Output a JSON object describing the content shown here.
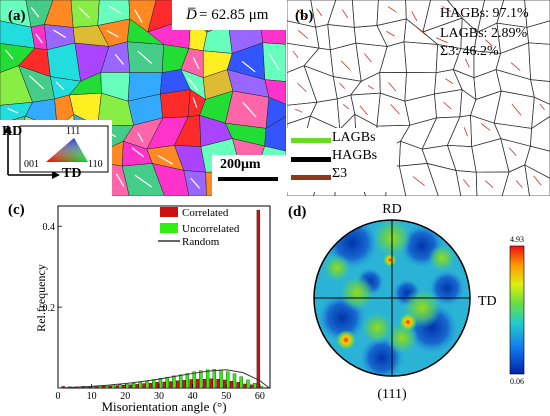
{
  "panel_a": {
    "label": "(a)",
    "grain_size_symbol": "D̅",
    "grain_size_text": "= 62.85 μm",
    "scale_bar": "200μm",
    "legend": {
      "rd": "RD",
      "td": "TD",
      "c111": "111",
      "c001": "001",
      "c110": "110"
    }
  },
  "panel_b": {
    "label": "(b)",
    "stats": [
      "HAGBs: 97.1%",
      "LAGBs: 2.89%",
      "Σ3: 46.2%"
    ],
    "legend": [
      {
        "label": "LAGBs",
        "color": "#66dd22"
      },
      {
        "label": "HAGBs",
        "color": "#000000"
      },
      {
        "label": "Σ3",
        "color": "#8b3a1a"
      }
    ]
  },
  "panel_c": {
    "label": "(c)"
  },
  "panel_d": {
    "label": "(d)",
    "rd": "RD",
    "td": "TD",
    "caption": "(111)",
    "colorbar_max": "4.93",
    "colorbar_min": "0.06"
  },
  "chart_data": {
    "type": "bar",
    "xlabel": "Misorientation angle (°)",
    "ylabel": "Rel.frequency",
    "xlim": [
      0,
      63
    ],
    "ylim": [
      0,
      0.45
    ],
    "x_ticks": [
      0,
      10,
      20,
      30,
      40,
      50,
      60
    ],
    "y_ticks": [
      0.2,
      0.4
    ],
    "legend_position": "top-right",
    "series": [
      {
        "name": "Correlated",
        "color": "#cc1111",
        "x": [
          2,
          4,
          6,
          8,
          10,
          12,
          14,
          16,
          18,
          20,
          22,
          24,
          26,
          28,
          30,
          32,
          34,
          36,
          38,
          40,
          42,
          44,
          46,
          48,
          50,
          52,
          54,
          56,
          58,
          60
        ],
        "values": [
          0.004,
          0.003,
          0.003,
          0.004,
          0.004,
          0.004,
          0.005,
          0.005,
          0.006,
          0.007,
          0.008,
          0.009,
          0.011,
          0.012,
          0.014,
          0.015,
          0.016,
          0.018,
          0.019,
          0.021,
          0.022,
          0.022,
          0.023,
          0.022,
          0.02,
          0.017,
          0.014,
          0.01,
          0.008,
          0.44
        ]
      },
      {
        "name": "Uncorrelated",
        "color": "#33ee11",
        "x": [
          2,
          4,
          6,
          8,
          10,
          12,
          14,
          16,
          18,
          20,
          22,
          24,
          26,
          28,
          30,
          32,
          34,
          36,
          38,
          40,
          42,
          44,
          46,
          48,
          50,
          52,
          54,
          56,
          58,
          60
        ],
        "values": [
          0.001,
          0.001,
          0.002,
          0.002,
          0.003,
          0.004,
          0.005,
          0.006,
          0.008,
          0.01,
          0.012,
          0.015,
          0.018,
          0.021,
          0.024,
          0.027,
          0.03,
          0.033,
          0.036,
          0.04,
          0.043,
          0.045,
          0.046,
          0.045,
          0.04,
          0.035,
          0.028,
          0.02,
          0.012,
          0.004
        ]
      },
      {
        "name": "Random",
        "color": "#333333",
        "x": [
          0,
          5,
          10,
          15,
          20,
          25,
          30,
          35,
          40,
          45,
          50,
          55,
          58,
          60,
          62.8
        ],
        "values": [
          0,
          0.002,
          0.004,
          0.007,
          0.011,
          0.016,
          0.022,
          0.029,
          0.036,
          0.042,
          0.045,
          0.038,
          0.026,
          0.018,
          0
        ]
      }
    ]
  }
}
